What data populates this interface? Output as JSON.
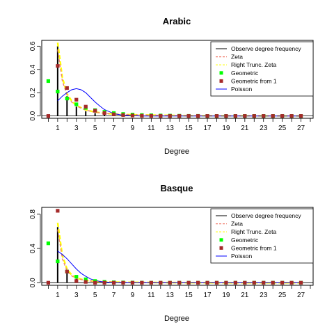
{
  "chart_data": [
    {
      "type": "line",
      "title": "Arabic",
      "xlabel": "Degree",
      "ylabel": "",
      "xlim": [
        -0.7,
        28.3
      ],
      "ylim": [
        -0.02,
        0.65
      ],
      "x_ticks": [
        1,
        3,
        5,
        7,
        9,
        11,
        13,
        15,
        17,
        19,
        21,
        23,
        25,
        27
      ],
      "y_ticks": [
        0.0,
        0.2,
        0.4,
        0.6
      ],
      "y_tick_labels": [
        "0.0",
        "0.2",
        "0.4",
        "0.6"
      ],
      "legend": [
        "Observe degree frequency",
        "Zeta",
        "Right Trunc. Zeta",
        "Geometric",
        "Geometric from 1",
        "Poisson"
      ],
      "legend_position": "top-right",
      "colors": {
        "observed": "#000000",
        "zeta": "#f08070",
        "right_trunc_zeta": "#ffff00",
        "geometric": "#00ff00",
        "geometric_from_1": "#a52a2a",
        "poisson": "#0000ff"
      },
      "observed": {
        "x": [
          1,
          2,
          3,
          4,
          5,
          6,
          7,
          8,
          9,
          10
        ],
        "y": [
          0.6,
          0.17,
          0.08,
          0.04,
          0.025,
          0.015,
          0.01,
          0.006,
          0.004,
          0.003
        ]
      },
      "zeta_curve": {
        "x": [
          1,
          1.5,
          2,
          2.5,
          3,
          4,
          5,
          6,
          7,
          8,
          10,
          15,
          20,
          27
        ],
        "y": [
          0.57,
          0.3,
          0.18,
          0.12,
          0.085,
          0.05,
          0.032,
          0.022,
          0.016,
          0.012,
          0.008,
          0.003,
          0.002,
          0.001
        ]
      },
      "right_trunc_zeta_curve": {
        "x": [
          1,
          1.5,
          2,
          2.5,
          3,
          4,
          5,
          6,
          7,
          8,
          10,
          15,
          20,
          27
        ],
        "y": [
          0.63,
          0.33,
          0.19,
          0.13,
          0.09,
          0.052,
          0.033,
          0.023,
          0.017,
          0.013,
          0.008,
          0.003,
          0.002,
          0.001
        ]
      },
      "poisson_curve": {
        "x": [
          1,
          1.5,
          2,
          2.5,
          3,
          3.5,
          4,
          4.5,
          5,
          5.5,
          6,
          7,
          8,
          9,
          10,
          27
        ],
        "y": [
          0.13,
          0.17,
          0.2,
          0.225,
          0.235,
          0.225,
          0.2,
          0.16,
          0.12,
          0.085,
          0.055,
          0.02,
          0.006,
          0.002,
          0.0,
          0.0
        ]
      },
      "geometric": {
        "x": [
          0,
          1,
          2,
          3,
          4,
          5,
          6,
          7,
          8,
          9,
          10,
          11,
          12,
          13,
          14,
          15,
          16,
          17,
          18,
          19,
          20,
          21,
          22,
          23,
          24,
          25,
          26,
          27
        ],
        "y": [
          0.3,
          0.21,
          0.15,
          0.1,
          0.07,
          0.05,
          0.035,
          0.025,
          0.017,
          0.012,
          0.008,
          0.006,
          0.004,
          0.003,
          0.002,
          0.001,
          0.001,
          0.0,
          0.0,
          0.0,
          0.0,
          0.0,
          0.0,
          0.0,
          0.0,
          0.0,
          0.0,
          0.0
        ]
      },
      "geometric_from_1": {
        "x": [
          0,
          1,
          2,
          3,
          4,
          5,
          6,
          7,
          8,
          9,
          10,
          11,
          12,
          13,
          14,
          15,
          16,
          17,
          18,
          19,
          20,
          21,
          22,
          23,
          24,
          25,
          26,
          27
        ],
        "y": [
          0.0,
          0.43,
          0.24,
          0.14,
          0.08,
          0.045,
          0.025,
          0.014,
          0.008,
          0.004,
          0.002,
          0.001,
          0.0,
          0.0,
          0.0,
          0.0,
          0.0,
          0.0,
          0.0,
          0.0,
          0.0,
          0.0,
          0.0,
          0.0,
          0.0,
          0.0,
          0.0,
          0.0
        ]
      }
    },
    {
      "type": "line",
      "title": "Basque",
      "xlabel": "Degree",
      "ylabel": "",
      "xlim": [
        -0.7,
        28.3
      ],
      "ylim": [
        -0.03,
        0.88
      ],
      "x_ticks": [
        1,
        3,
        5,
        7,
        9,
        11,
        13,
        15,
        17,
        19,
        21,
        23,
        25,
        27
      ],
      "y_ticks": [
        0.0,
        0.4,
        0.8
      ],
      "y_tick_labels": [
        "0.0",
        "0.4",
        "0.8"
      ],
      "legend": [
        "Observe degree frequency",
        "Zeta",
        "Right Trunc. Zeta",
        "Geometric",
        "Geometric from 1",
        "Poisson"
      ],
      "legend_position": "top-right",
      "colors": {
        "observed": "#000000",
        "zeta": "#f08070",
        "right_trunc_zeta": "#ffff00",
        "geometric": "#00ff00",
        "geometric_from_1": "#a52a2a",
        "poisson": "#0000ff"
      },
      "observed": {
        "x": [
          1,
          2,
          3,
          4,
          5,
          6,
          7,
          8
        ],
        "y": [
          0.65,
          0.13,
          0.06,
          0.03,
          0.015,
          0.008,
          0.005,
          0.003
        ]
      },
      "zeta_curve": {
        "x": [
          1,
          1.5,
          2,
          2.5,
          3,
          4,
          5,
          6,
          7,
          8,
          10,
          15,
          20,
          27
        ],
        "y": [
          0.62,
          0.28,
          0.14,
          0.08,
          0.05,
          0.025,
          0.015,
          0.01,
          0.007,
          0.005,
          0.003,
          0.001,
          0.0,
          0.0
        ]
      },
      "right_trunc_zeta_curve": {
        "x": [
          1,
          1.5,
          2,
          2.5,
          3,
          4,
          5,
          6,
          7,
          8,
          10,
          15,
          20,
          27
        ],
        "y": [
          0.7,
          0.32,
          0.16,
          0.09,
          0.055,
          0.027,
          0.016,
          0.01,
          0.007,
          0.005,
          0.003,
          0.001,
          0.0,
          0.0
        ]
      },
      "poisson_curve": {
        "x": [
          1,
          1.5,
          2,
          2.5,
          3,
          3.5,
          4,
          4.5,
          5,
          5.5,
          6,
          7,
          8,
          10,
          27
        ],
        "y": [
          0.37,
          0.33,
          0.28,
          0.22,
          0.16,
          0.11,
          0.075,
          0.045,
          0.028,
          0.015,
          0.008,
          0.002,
          0.0,
          0.0,
          0.0
        ]
      },
      "geometric": {
        "x": [
          0,
          1,
          2,
          3,
          4,
          5,
          6,
          7,
          8,
          9,
          10,
          11,
          12,
          13,
          14,
          15,
          16,
          17,
          18,
          19,
          20,
          21,
          22,
          23,
          24,
          25,
          26,
          27
        ],
        "y": [
          0.46,
          0.25,
          0.13,
          0.07,
          0.04,
          0.02,
          0.01,
          0.005,
          0.003,
          0.002,
          0.001,
          0.0,
          0.0,
          0.0,
          0.0,
          0.0,
          0.0,
          0.0,
          0.0,
          0.0,
          0.0,
          0.0,
          0.0,
          0.0,
          0.0,
          0.0,
          0.0,
          0.0
        ]
      },
      "geometric_from_1": {
        "x": [
          0,
          1,
          2,
          3,
          4,
          5,
          6,
          7,
          8,
          9,
          10,
          11,
          12,
          13,
          14,
          15,
          16,
          17,
          18,
          19,
          20,
          21,
          22,
          23,
          24,
          25,
          26,
          27
        ],
        "y": [
          0.0,
          0.84,
          0.13,
          0.02,
          0.01,
          0.0,
          0.0,
          0.0,
          0.0,
          0.0,
          0.0,
          0.0,
          0.0,
          0.0,
          0.0,
          0.0,
          0.0,
          0.0,
          0.0,
          0.0,
          0.0,
          0.0,
          0.0,
          0.0,
          0.0,
          0.0,
          0.0,
          0.0
        ]
      }
    }
  ]
}
